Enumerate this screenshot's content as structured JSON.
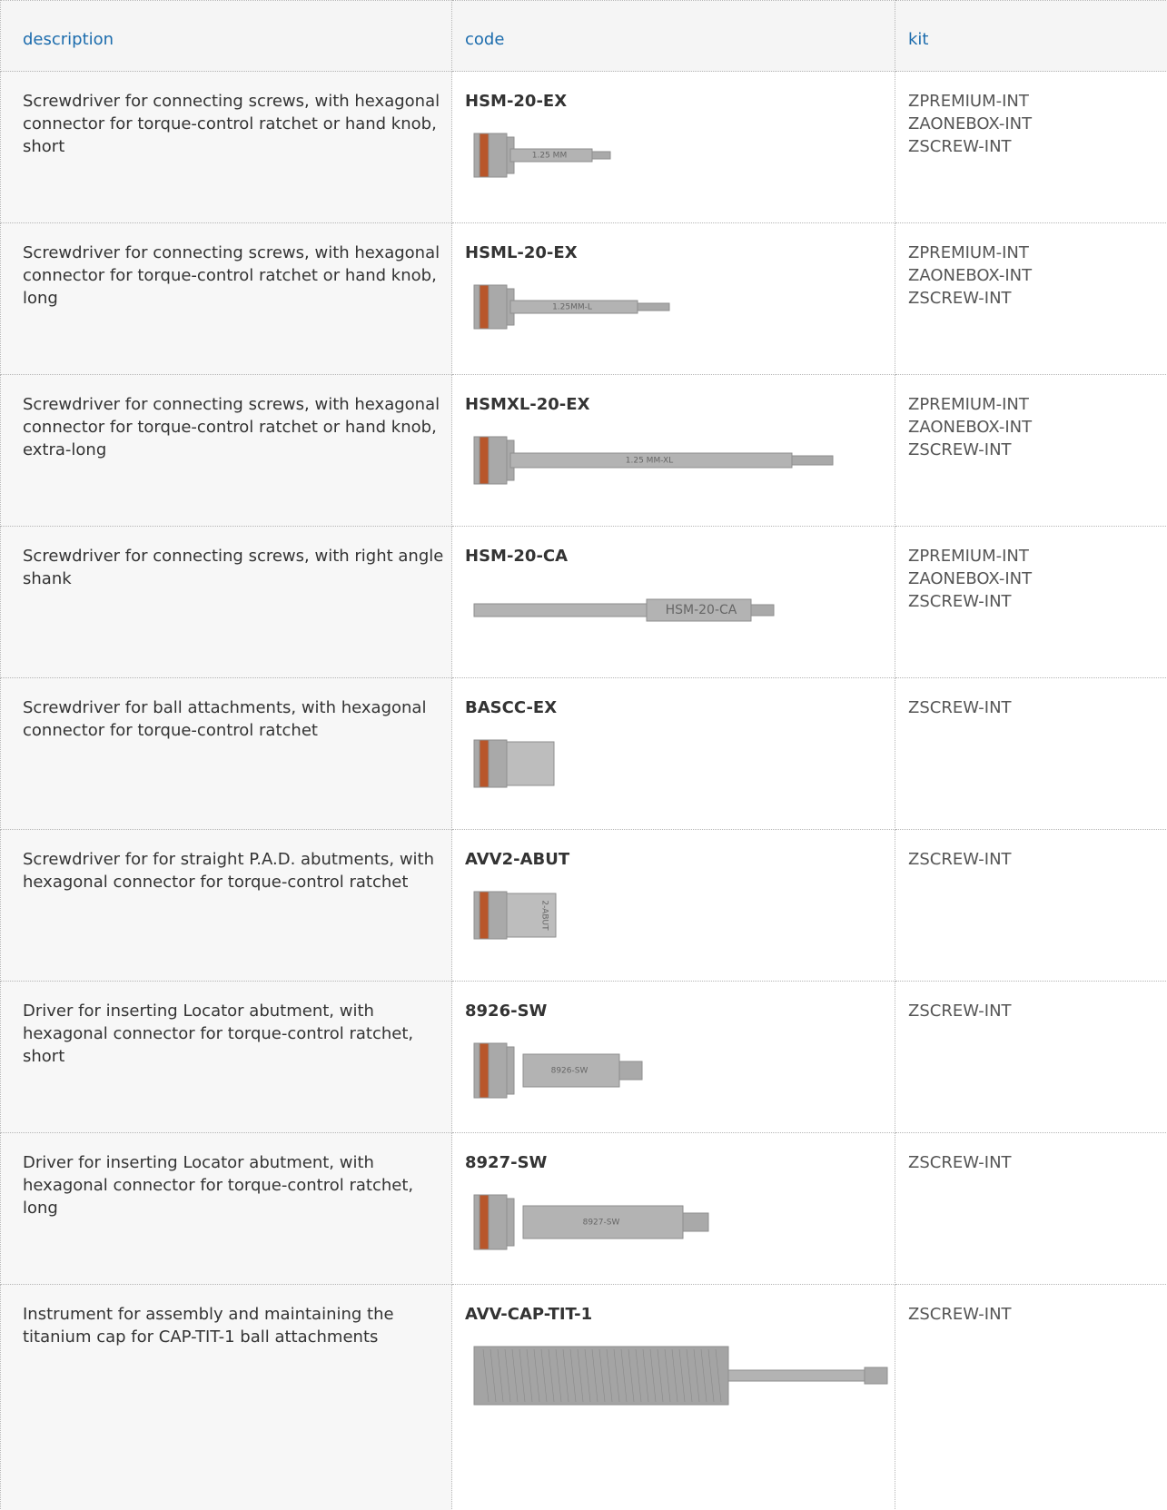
{
  "table": {
    "header": [
      "description",
      "code",
      "kit"
    ],
    "rows": [
      {
        "description": "Screwdriver for connecting screws, with hexagonal connector for torque-control ratchet or hand knob, short",
        "code": "HSM-20-EX",
        "kit": [
          "ZPREMIUM-INT",
          "ZAONEBOX-INT",
          "ZSCREW-INT"
        ],
        "engraving": "1.25 MM"
      },
      {
        "description": "Screwdriver for connecting screws, with hexagonal connector for torque-control ratchet or hand knob, long",
        "code": "HSML-20-EX",
        "kit": [
          "ZPREMIUM-INT",
          "ZAONEBOX-INT",
          "ZSCREW-INT"
        ],
        "engraving": "1.25MM-L"
      },
      {
        "description": "Screwdriver for connecting screws, with hexagonal connector for torque-control ratchet or hand knob, extra-long",
        "code": "HSMXL-20-EX",
        "kit": [
          "ZPREMIUM-INT",
          "ZAONEBOX-INT",
          "ZSCREW-INT"
        ],
        "engraving": "1.25 MM-XL"
      },
      {
        "description": "Screwdriver for connecting screws, with right angle shank",
        "code": "HSM-20-CA",
        "kit": [
          "ZPREMIUM-INT",
          "ZAONEBOX-INT",
          "ZSCREW-INT"
        ],
        "engraving": "HSM-20-CA"
      },
      {
        "description": "Screwdriver for ball attachments, with hexagonal connector for torque-control ratchet",
        "code": "BASCC-EX",
        "kit": [
          "ZSCREW-INT"
        ]
      },
      {
        "description": "Screwdriver for for straight P.A.D. abutments, with hexagonal connector for torque-control ratchet",
        "code": "AVV2-ABUT",
        "kit": [
          "ZSCREW-INT"
        ],
        "engraving": "2-ABUT"
      },
      {
        "description": "Driver for inserting Locator abutment, with hexagonal connector for torque-control ratchet, short",
        "code": "8926-SW",
        "kit": [
          "ZSCREW-INT"
        ],
        "engraving": "8926-SW"
      },
      {
        "description": "Driver for inserting Locator abutment, with hexagonal connector for torque-control ratchet, long",
        "code": "8927-SW",
        "kit": [
          "ZSCREW-INT"
        ],
        "engraving": "8927-SW"
      },
      {
        "description": "Instrument for assembly and maintaining the titanium cap for CAP-TIT-1 ball attachments",
        "code": "AVV-CAP-TIT-1",
        "kit": [
          "ZSCREW-INT"
        ]
      }
    ]
  }
}
